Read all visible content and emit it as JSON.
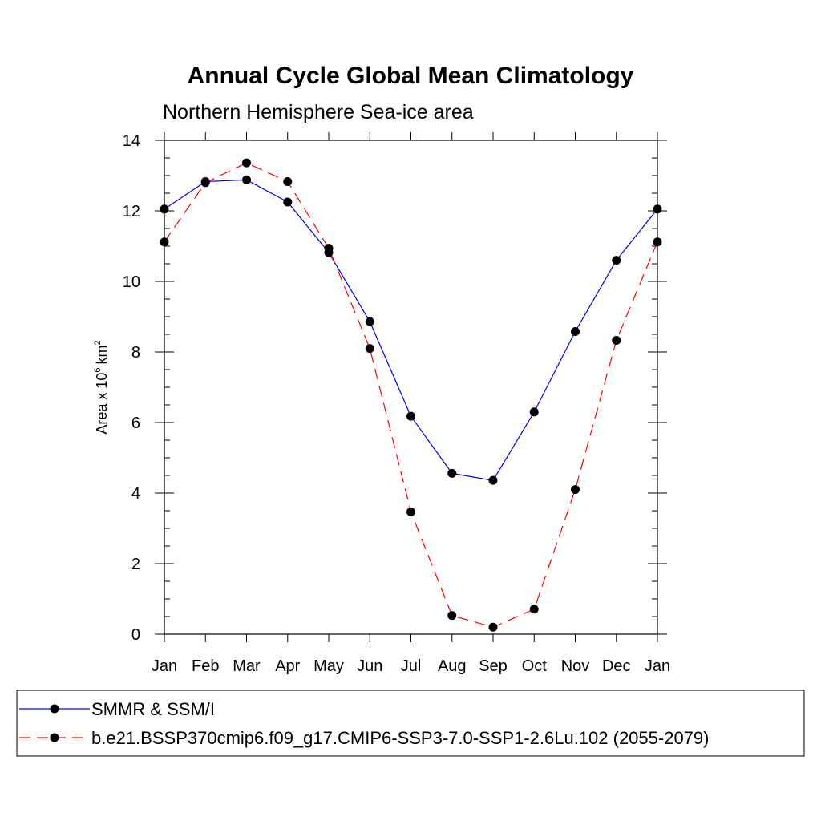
{
  "chart_data": {
    "type": "line",
    "title": "Annual Cycle Global Mean Climatology",
    "subtitle": "Northern Hemisphere Sea-ice area",
    "ylabel": {
      "base": "Area x 10",
      "exp": "6",
      "unit": "km",
      "unit_exp": "2"
    },
    "xlabel": "",
    "categories": [
      "Jan",
      "Feb",
      "Mar",
      "Apr",
      "May",
      "Jun",
      "Jul",
      "Aug",
      "Sep",
      "Oct",
      "Nov",
      "Dec",
      "Jan"
    ],
    "ylim": [
      0,
      14
    ],
    "yticks": [
      0,
      2,
      4,
      6,
      8,
      10,
      12,
      14
    ],
    "series": [
      {
        "name": "SMMR & SSM/I",
        "color": "#0000ff",
        "dash": "solid",
        "values": [
          12.05,
          12.83,
          12.88,
          12.25,
          10.82,
          8.86,
          6.18,
          4.56,
          4.36,
          6.3,
          8.58,
          10.6,
          12.05
        ]
      },
      {
        "name": "b.e21.BSSP370cmip6.f09_g17.CMIP6-SSP3-7.0-SSP1-2.6Lu.102 (2055-2079)",
        "color": "#ff0000",
        "dash": "dashed",
        "values": [
          11.12,
          12.8,
          13.36,
          12.83,
          10.94,
          8.1,
          3.47,
          0.53,
          0.2,
          0.71,
          4.1,
          8.33,
          11.12
        ]
      }
    ],
    "legend_position": "bottom",
    "grid": false
  }
}
